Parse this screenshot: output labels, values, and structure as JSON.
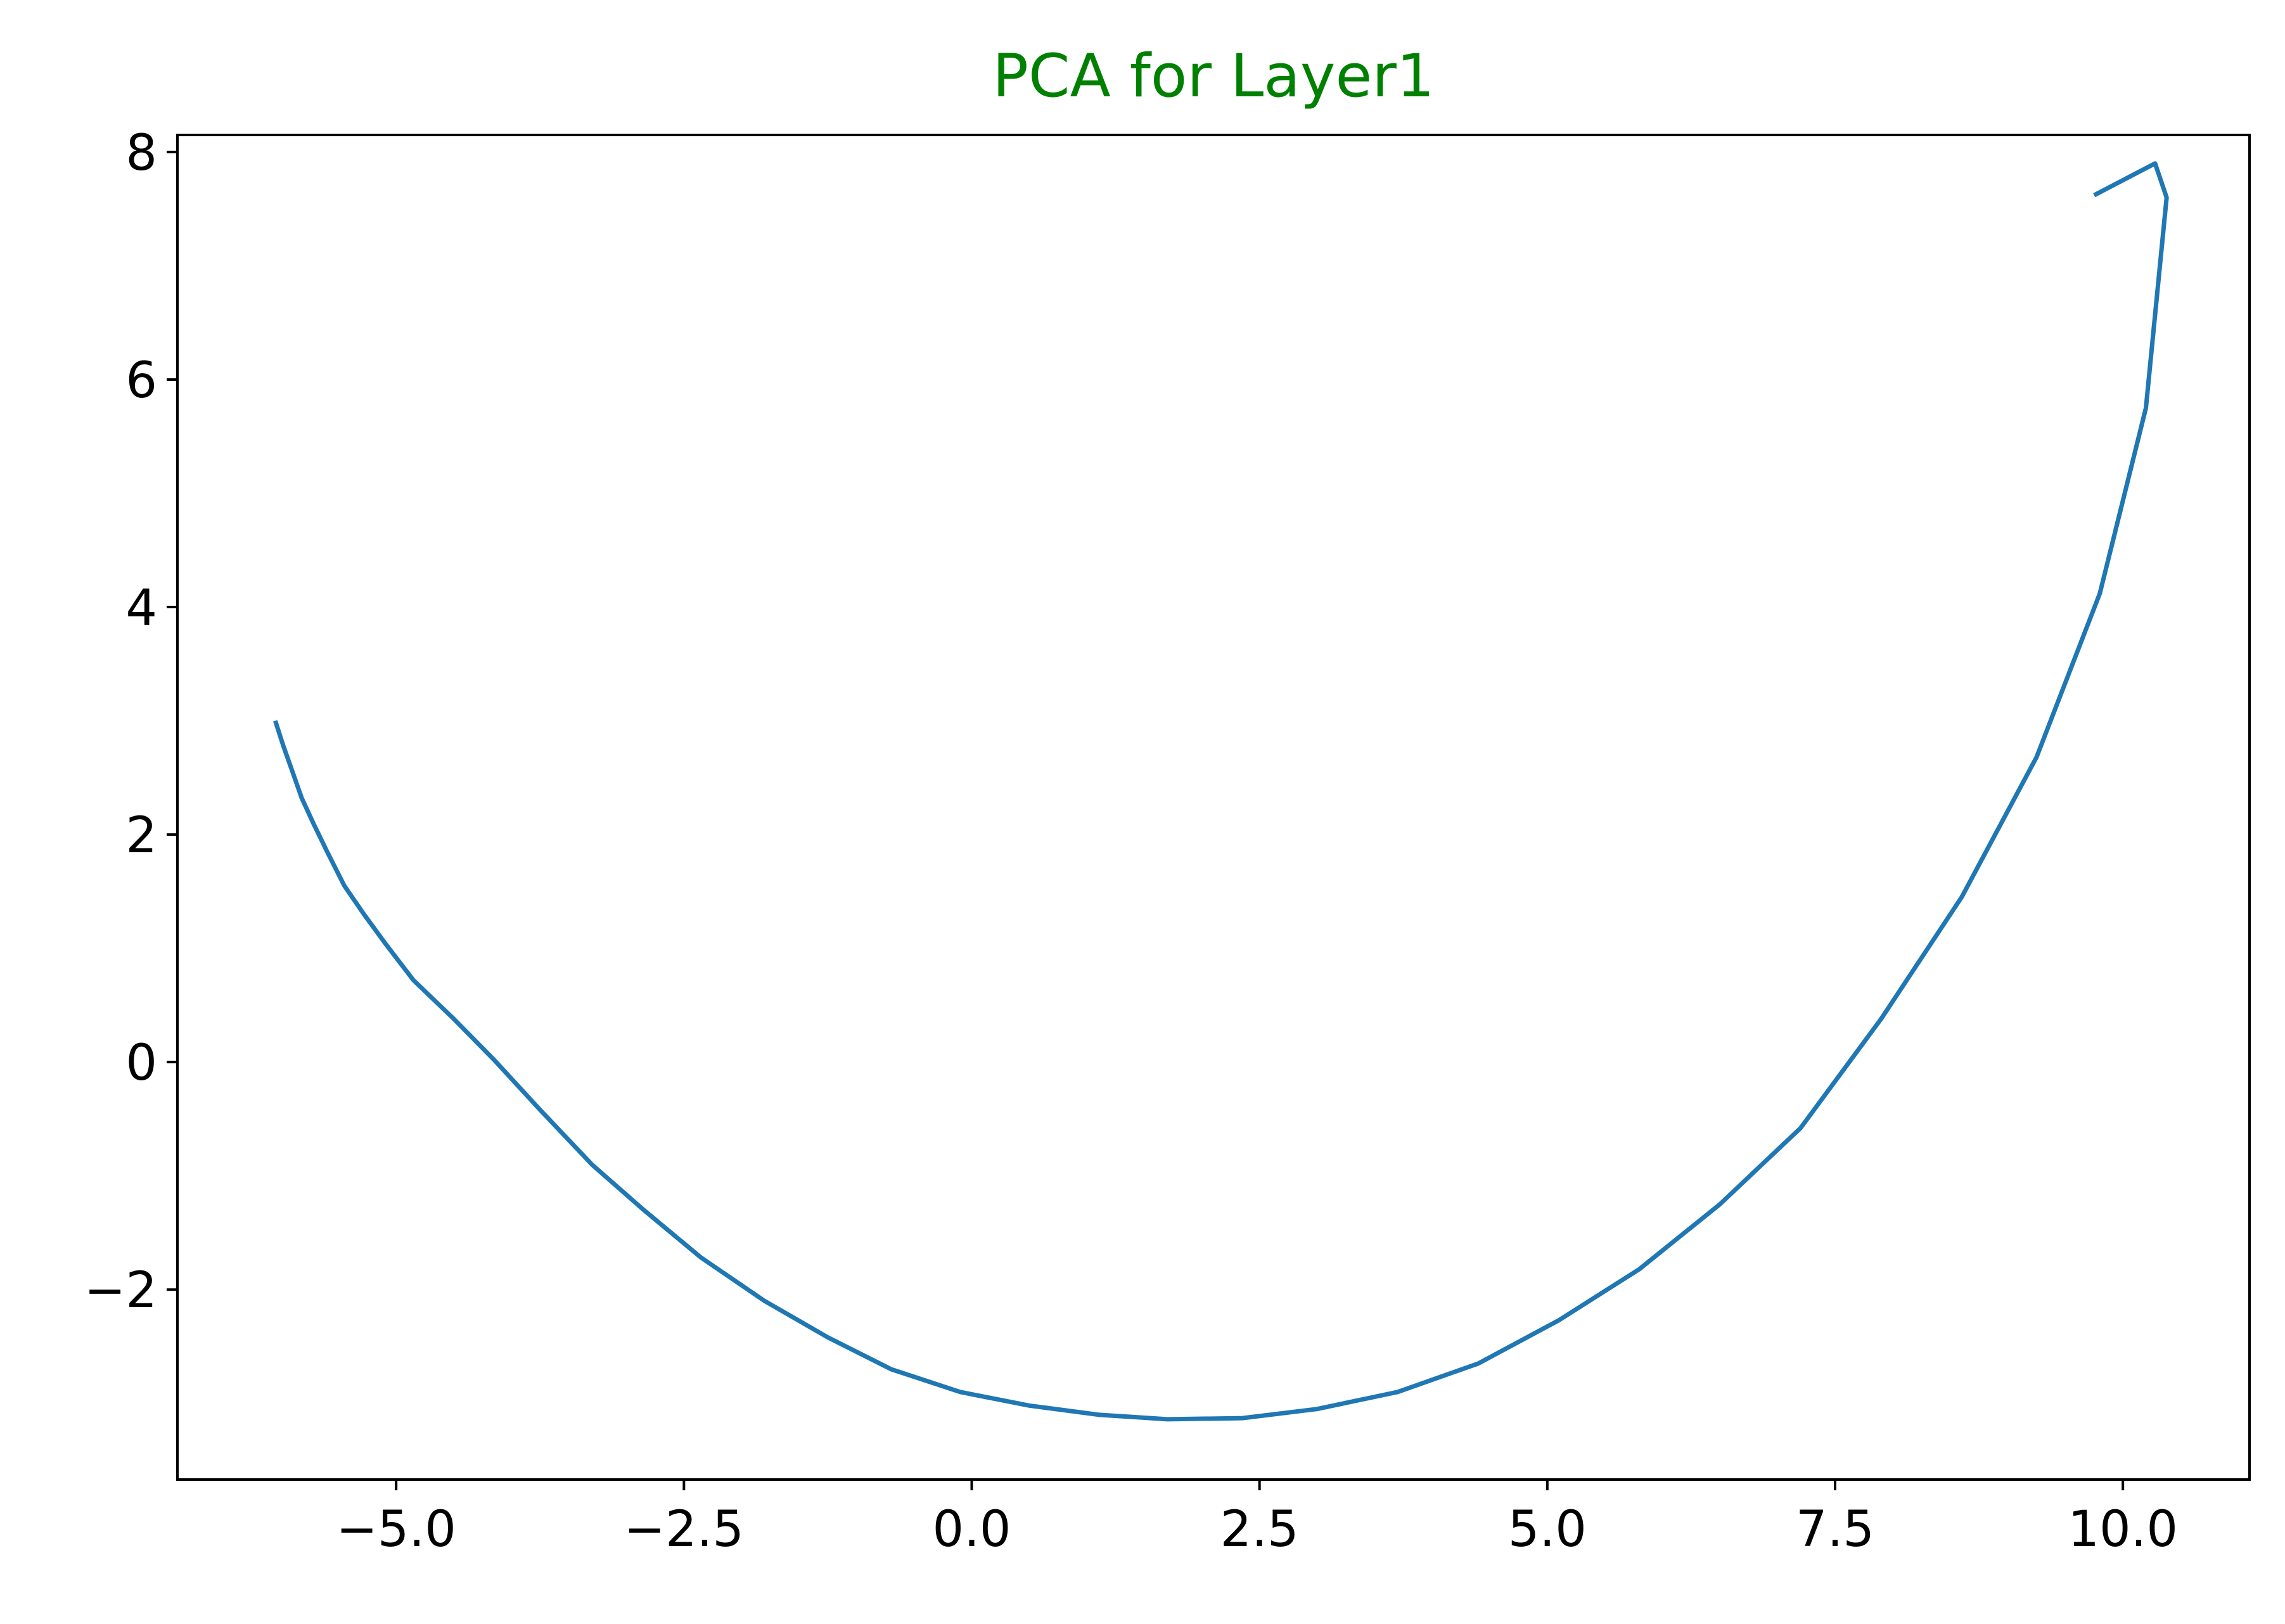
{
  "chart_data": {
    "type": "line",
    "title": "PCA for Layer1",
    "title_color": "#008000",
    "line_color": "#1f77b4",
    "xlabel": "",
    "ylabel": "",
    "xlim": [
      -6.9,
      11.1
    ],
    "ylim": [
      -3.67,
      8.15
    ],
    "grid": false,
    "xticks": [
      -5.0,
      -2.5,
      0.0,
      2.5,
      5.0,
      7.5,
      10.0
    ],
    "xtick_labels": [
      "−5.0",
      "−2.5",
      "0.0",
      "2.5",
      "5.0",
      "7.5",
      "10.0"
    ],
    "yticks": [
      -2,
      0,
      2,
      4,
      6,
      8
    ],
    "ytick_labels": [
      "−2",
      "0",
      "2",
      "4",
      "6",
      "8"
    ],
    "series": [
      {
        "x": [
          -6.05,
          -5.98,
          -5.9,
          -5.82,
          -5.72,
          -5.6,
          -5.45,
          -5.28,
          -5.1,
          -4.85,
          -4.5,
          -4.15,
          -3.75,
          -3.3,
          -2.85,
          -2.35,
          -1.8,
          -1.25,
          -0.7,
          -0.1,
          0.5,
          1.1,
          1.7,
          2.35,
          3.0,
          3.7,
          4.4,
          5.1,
          5.8,
          6.5,
          7.2,
          7.9,
          8.6,
          9.25,
          9.8,
          10.2,
          10.38,
          10.28,
          9.75
        ],
        "y": [
          3.0,
          2.78,
          2.55,
          2.32,
          2.1,
          1.85,
          1.55,
          1.3,
          1.05,
          0.72,
          0.38,
          0.02,
          -0.42,
          -0.9,
          -1.3,
          -1.72,
          -2.1,
          -2.42,
          -2.7,
          -2.9,
          -3.02,
          -3.1,
          -3.14,
          -3.13,
          -3.05,
          -2.9,
          -2.65,
          -2.27,
          -1.82,
          -1.25,
          -0.58,
          0.38,
          1.45,
          2.68,
          4.12,
          5.75,
          7.6,
          7.9,
          7.62
        ]
      }
    ]
  }
}
